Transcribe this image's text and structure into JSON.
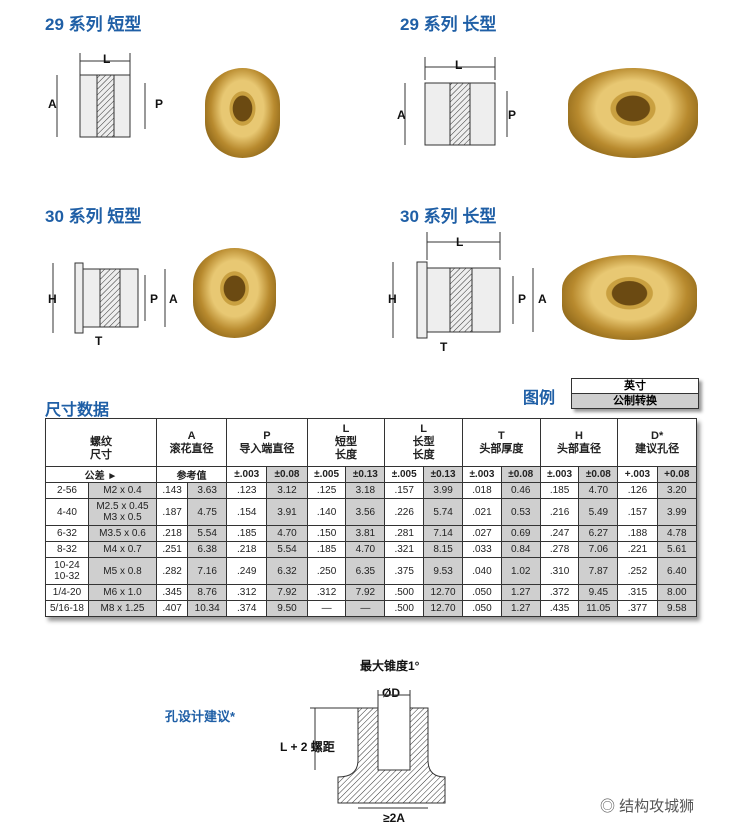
{
  "sections": [
    {
      "title": "29 系列  短型",
      "labels": [
        "L",
        "A",
        "P"
      ]
    },
    {
      "title": "29 系列  长型",
      "labels": [
        "L",
        "A",
        "P"
      ]
    },
    {
      "title": "30 系列  短型",
      "labels": [
        "H",
        "P",
        "A",
        "T"
      ]
    },
    {
      "title": "30 系列  长型",
      "labels": [
        "L",
        "H",
        "P",
        "A",
        "T"
      ]
    }
  ],
  "table_title": "尺寸数据",
  "legend": {
    "title": "图例",
    "inch": "英寸",
    "metric": "公制转换"
  },
  "headers": [
    {
      "sym": "",
      "name": "螺纹\n尺寸"
    },
    {
      "sym": "A",
      "name": "滚花直径"
    },
    {
      "sym": "P",
      "name": "导入端直径"
    },
    {
      "sym": "L",
      "name": "短型\n长度"
    },
    {
      "sym": "L",
      "name": "长型\n长度"
    },
    {
      "sym": "T",
      "name": "头部厚度"
    },
    {
      "sym": "H",
      "name": "头部直径"
    },
    {
      "sym": "D*",
      "name": "建议孔径"
    }
  ],
  "tolerance_row": {
    "label": "公差 ►",
    "ref": "参考值",
    "values": [
      "±.003",
      "±0.08",
      "±.005",
      "±0.13",
      "±.005",
      "±0.13",
      "±.003",
      "±0.08",
      "±.003",
      "±0.08",
      "+.003",
      "+0.08"
    ]
  },
  "rows": [
    {
      "inch": "2-56",
      "metric": "M2 x 0.4",
      "v": [
        ".143",
        "3.63",
        ".123",
        "3.12",
        ".125",
        "3.18",
        ".157",
        "3.99",
        ".018",
        "0.46",
        ".185",
        "4.70",
        ".126",
        "3.20"
      ]
    },
    {
      "inch": "4-40",
      "metric": "M2.5 x 0.45\nM3 x 0.5",
      "v": [
        ".187",
        "4.75",
        ".154",
        "3.91",
        ".140",
        "3.56",
        ".226",
        "5.74",
        ".021",
        "0.53",
        ".216",
        "5.49",
        ".157",
        "3.99"
      ]
    },
    {
      "inch": "6-32",
      "metric": "M3.5 x 0.6",
      "v": [
        ".218",
        "5.54",
        ".185",
        "4.70",
        ".150",
        "3.81",
        ".281",
        "7.14",
        ".027",
        "0.69",
        ".247",
        "6.27",
        ".188",
        "4.78"
      ]
    },
    {
      "inch": "8-32",
      "metric": "M4 x 0.7",
      "v": [
        ".251",
        "6.38",
        ".218",
        "5.54",
        ".185",
        "4.70",
        ".321",
        "8.15",
        ".033",
        "0.84",
        ".278",
        "7.06",
        ".221",
        "5.61"
      ]
    },
    {
      "inch": "10-24\n10-32",
      "metric": "M5 x 0.8",
      "v": [
        ".282",
        "7.16",
        ".249",
        "6.32",
        ".250",
        "6.35",
        ".375",
        "9.53",
        ".040",
        "1.02",
        ".310",
        "7.87",
        ".252",
        "6.40"
      ]
    },
    {
      "inch": "1/4-20",
      "metric": "M6 x 1.0",
      "v": [
        ".345",
        "8.76",
        ".312",
        "7.92",
        ".312",
        "7.92",
        ".500",
        "12.70",
        ".050",
        "1.27",
        ".372",
        "9.45",
        ".315",
        "8.00"
      ]
    },
    {
      "inch": "5/16-18",
      "metric": "M8 x 1.25",
      "v": [
        ".407",
        "10.34",
        ".374",
        "9.50",
        "—",
        "—",
        ".500",
        "12.70",
        ".050",
        "1.27",
        ".435",
        "11.05",
        ".377",
        "9.58"
      ]
    }
  ],
  "hole": {
    "title": "孔设计建议*",
    "taper": "最大锥度1°",
    "diameter": "ØD",
    "depth": "L + 2 螺距",
    "width": "≥2A"
  },
  "watermark": "结构攻城狮"
}
